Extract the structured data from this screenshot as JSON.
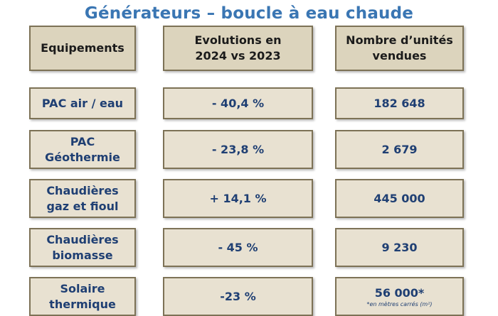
{
  "title": "Générateurs – boucle à eau chaude",
  "headers": {
    "equipment": "Equipements",
    "evolution_line1": "Evolutions en",
    "evolution_line2": "2024 vs 2023",
    "units_line1": "Nombre d’unités",
    "units_line2": "vendues"
  },
  "rows": [
    {
      "equipment_line1": "PAC air / eau",
      "equipment_line2": "",
      "evolution": "- 40,4 %",
      "units": "182 648",
      "note": ""
    },
    {
      "equipment_line1": "PAC",
      "equipment_line2": "Géothermie",
      "evolution": "- 23,8 %",
      "units": "2 679",
      "note": ""
    },
    {
      "equipment_line1": "Chaudières",
      "equipment_line2": "gaz et fioul",
      "evolution": "+ 14,1 %",
      "units": "445 000",
      "note": ""
    },
    {
      "equipment_line1": "Chaudières",
      "equipment_line2": "biomasse",
      "evolution": "- 45 %",
      "units": "9 230",
      "note": ""
    },
    {
      "equipment_line1": "Solaire",
      "equipment_line2": "thermique",
      "evolution": "-23 %",
      "units": "56 000*",
      "note": "*en mètres carrés (m²)"
    }
  ]
}
